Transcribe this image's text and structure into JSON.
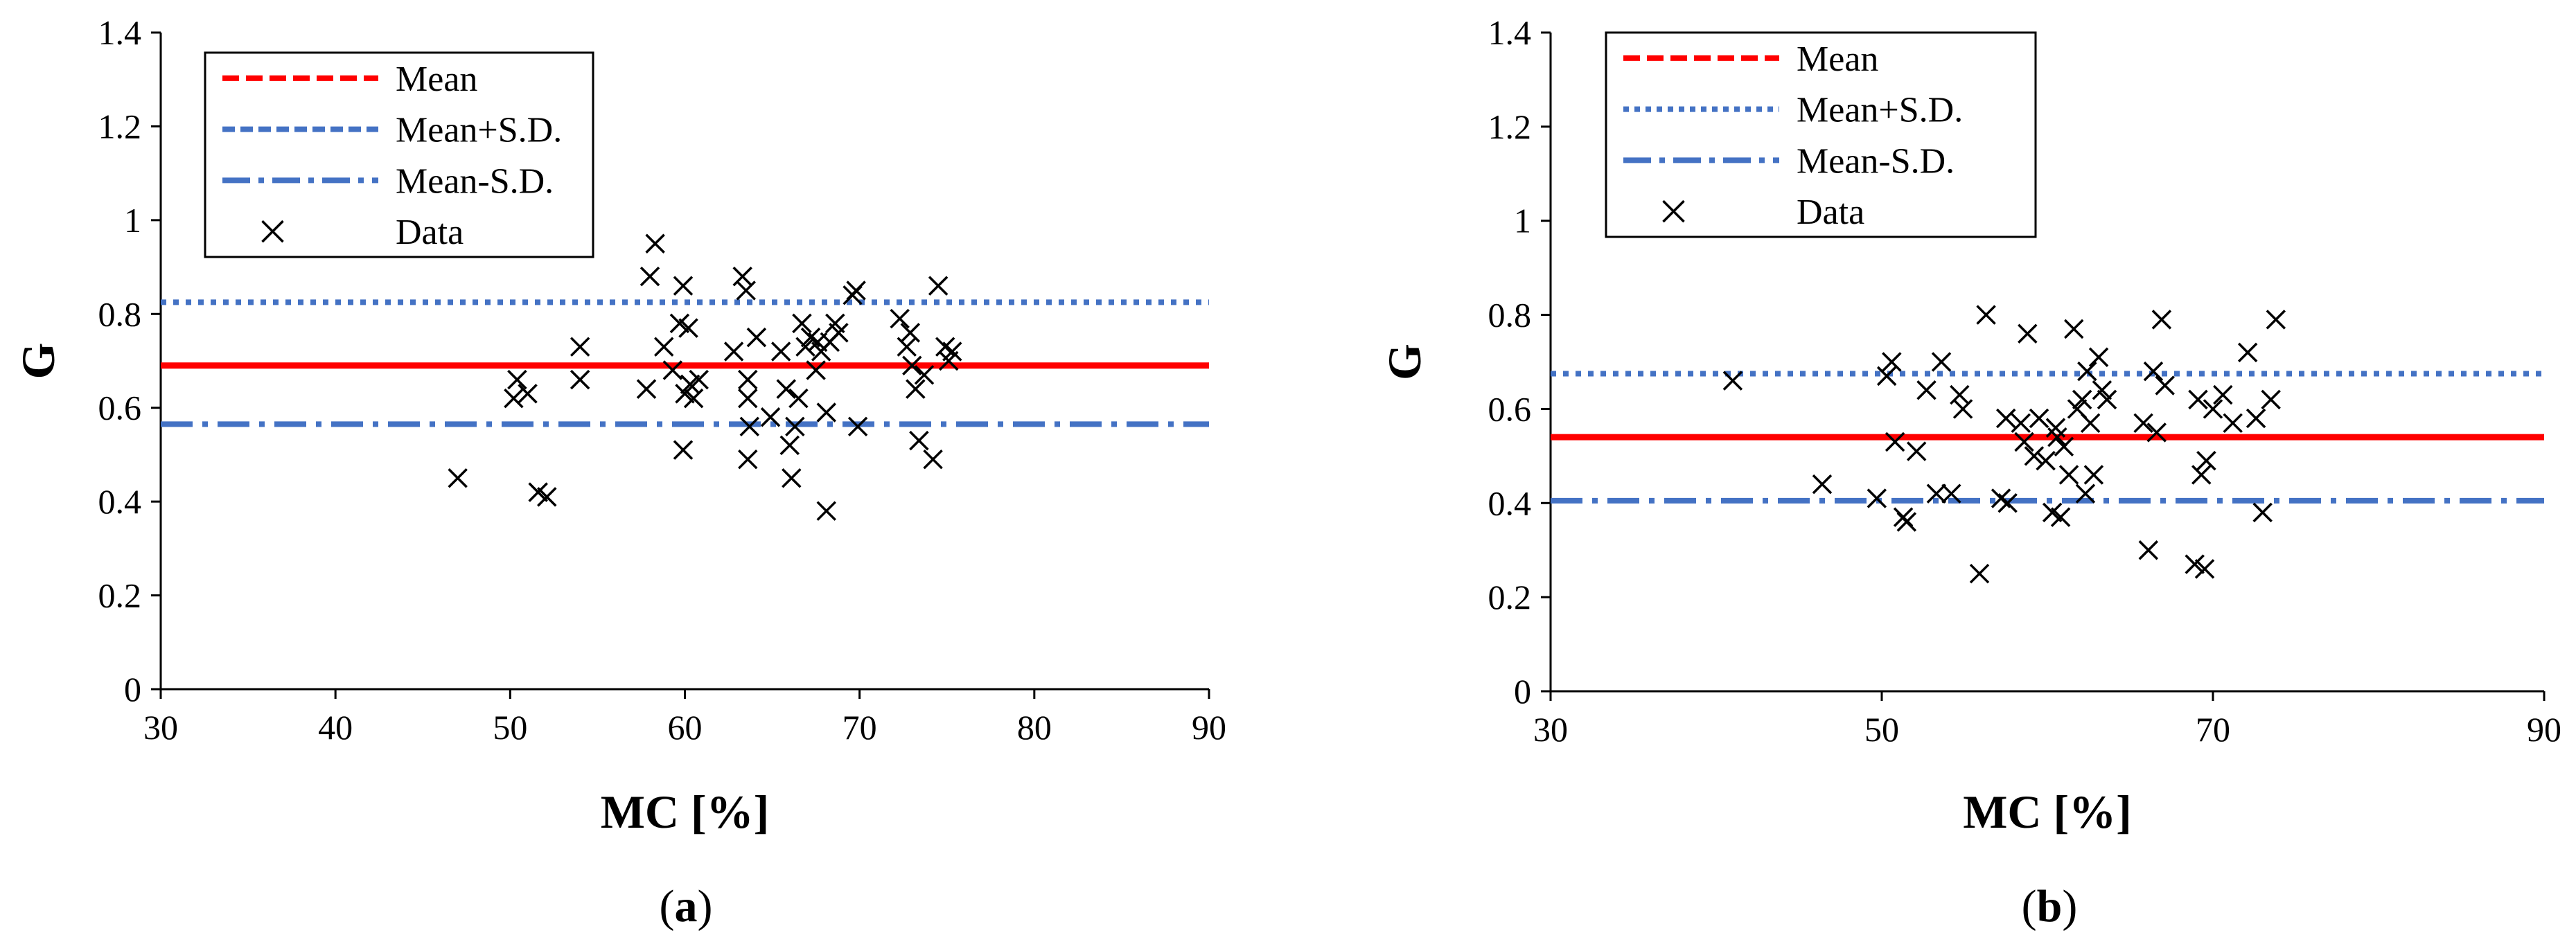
{
  "chart_data": [
    {
      "type": "scatter",
      "caption_label": "a",
      "xlabel": "MC [%]",
      "ylabel": "G",
      "xlim": [
        30,
        90
      ],
      "ylim": [
        0,
        1.4
      ],
      "x_ticks": [
        "30",
        "40",
        "50",
        "60",
        "70",
        "80",
        "90"
      ],
      "y_ticks": [
        "0",
        "0.2",
        "0.4",
        "0.6",
        "0.8",
        "1",
        "1.2",
        "1.4"
      ],
      "lines": {
        "mean": 0.69,
        "mean_plus_sd": 0.825,
        "mean_minus_sd": 0.565
      },
      "legend": [
        "Mean",
        "Mean+S.D.",
        "Mean-S.D.",
        "Data"
      ],
      "points": [
        [
          47,
          0.45
        ],
        [
          50.2,
          0.62
        ],
        [
          50.4,
          0.66
        ],
        [
          51,
          0.63
        ],
        [
          51.6,
          0.42
        ],
        [
          52.1,
          0.41
        ],
        [
          54,
          0.73
        ],
        [
          54,
          0.66
        ],
        [
          57.8,
          0.64
        ],
        [
          58,
          0.88
        ],
        [
          58.3,
          0.95
        ],
        [
          58.8,
          0.73
        ],
        [
          59.3,
          0.68
        ],
        [
          59.7,
          0.78
        ],
        [
          59.9,
          0.86
        ],
        [
          59.9,
          0.51
        ],
        [
          60,
          0.63
        ],
        [
          60.2,
          0.77
        ],
        [
          60.3,
          0.65
        ],
        [
          60.5,
          0.62
        ],
        [
          60.8,
          0.66
        ],
        [
          62.8,
          0.72
        ],
        [
          63.3,
          0.88
        ],
        [
          63.5,
          0.85
        ],
        [
          63.6,
          0.66
        ],
        [
          63.6,
          0.62
        ],
        [
          63.7,
          0.56
        ],
        [
          63.6,
          0.49
        ],
        [
          64.1,
          0.75
        ],
        [
          64.9,
          0.58
        ],
        [
          65.5,
          0.72
        ],
        [
          65.8,
          0.64
        ],
        [
          66,
          0.52
        ],
        [
          66.1,
          0.45
        ],
        [
          66.3,
          0.56
        ],
        [
          66.5,
          0.62
        ],
        [
          66.7,
          0.78
        ],
        [
          66.9,
          0.73
        ],
        [
          67.2,
          0.75
        ],
        [
          67.5,
          0.68
        ],
        [
          67.6,
          0.74
        ],
        [
          67.8,
          0.72
        ],
        [
          68.1,
          0.38
        ],
        [
          68.1,
          0.59
        ],
        [
          68.3,
          0.74
        ],
        [
          68.6,
          0.78
        ],
        [
          68.8,
          0.76
        ],
        [
          69.6,
          0.84
        ],
        [
          69.8,
          0.85
        ],
        [
          69.9,
          0.56
        ],
        [
          72.3,
          0.79
        ],
        [
          72.7,
          0.73
        ],
        [
          72.9,
          0.76
        ],
        [
          73,
          0.69
        ],
        [
          73.2,
          0.64
        ],
        [
          73.4,
          0.53
        ],
        [
          73.7,
          0.67
        ],
        [
          74.2,
          0.49
        ],
        [
          74.5,
          0.86
        ],
        [
          74.9,
          0.73
        ],
        [
          75.1,
          0.7
        ],
        [
          75.3,
          0.72
        ]
      ]
    },
    {
      "type": "scatter",
      "caption_label": "b",
      "xlabel": "MC [%]",
      "ylabel": "G",
      "xlim": [
        30,
        90
      ],
      "ylim": [
        0,
        1.4
      ],
      "x_ticks": [
        "30",
        "50",
        "70",
        "90"
      ],
      "y_ticks": [
        "0",
        "0.2",
        "0.4",
        "0.6",
        "0.8",
        "1",
        "1.2",
        "1.4"
      ],
      "lines": {
        "mean": 0.54,
        "mean_plus_sd": 0.675,
        "mean_minus_sd": 0.405
      },
      "legend": [
        "Mean",
        "Mean+S.D.",
        "Mean-S.D.",
        "Data"
      ],
      "points": [
        [
          41,
          0.66
        ],
        [
          46.4,
          0.44
        ],
        [
          49.7,
          0.41
        ],
        [
          50.3,
          0.67
        ],
        [
          50.6,
          0.7
        ],
        [
          50.8,
          0.53
        ],
        [
          51.3,
          0.37
        ],
        [
          51.5,
          0.36
        ],
        [
          52.1,
          0.51
        ],
        [
          52.7,
          0.64
        ],
        [
          53.3,
          0.42
        ],
        [
          53.6,
          0.7
        ],
        [
          54.2,
          0.42
        ],
        [
          54.7,
          0.63
        ],
        [
          54.9,
          0.6
        ],
        [
          55.9,
          0.25
        ],
        [
          56.3,
          0.8
        ],
        [
          57.2,
          0.41
        ],
        [
          57.5,
          0.58
        ],
        [
          57.6,
          0.4
        ],
        [
          58.4,
          0.57
        ],
        [
          58.6,
          0.53
        ],
        [
          58.8,
          0.76
        ],
        [
          59.2,
          0.5
        ],
        [
          59.5,
          0.58
        ],
        [
          59.9,
          0.49
        ],
        [
          60.3,
          0.38
        ],
        [
          60.5,
          0.56
        ],
        [
          60.6,
          0.54
        ],
        [
          60.8,
          0.37
        ],
        [
          61,
          0.52
        ],
        [
          61.3,
          0.46
        ],
        [
          61.6,
          0.77
        ],
        [
          61.8,
          0.6
        ],
        [
          62.1,
          0.62
        ],
        [
          62.3,
          0.42
        ],
        [
          62.4,
          0.68
        ],
        [
          62.6,
          0.57
        ],
        [
          62.8,
          0.46
        ],
        [
          63.1,
          0.71
        ],
        [
          63.3,
          0.64
        ],
        [
          63.6,
          0.62
        ],
        [
          65.8,
          0.57
        ],
        [
          66.1,
          0.3
        ],
        [
          66.4,
          0.68
        ],
        [
          66.6,
          0.55
        ],
        [
          66.9,
          0.79
        ],
        [
          67.1,
          0.65
        ],
        [
          68.9,
          0.27
        ],
        [
          69.1,
          0.62
        ],
        [
          69.3,
          0.46
        ],
        [
          69.5,
          0.26
        ],
        [
          69.6,
          0.49
        ],
        [
          70,
          0.6
        ],
        [
          70.6,
          0.63
        ],
        [
          71.2,
          0.57
        ],
        [
          72.1,
          0.72
        ],
        [
          72.6,
          0.58
        ],
        [
          73,
          0.38
        ],
        [
          73.5,
          0.62
        ],
        [
          73.8,
          0.79
        ]
      ]
    }
  ]
}
